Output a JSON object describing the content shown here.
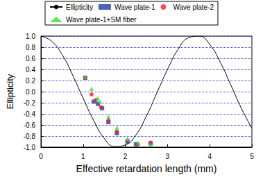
{
  "chart_data": {
    "type": "line",
    "xlabel": "Effective retardation length (mm)",
    "ylabel": "Ellipticity",
    "xlim": [
      0,
      5
    ],
    "xticks": [
      0,
      1,
      2,
      3,
      4,
      5
    ],
    "ylim": [
      -1,
      1
    ],
    "yticks": [
      {
        "value": -1,
        "label": "-1.0"
      },
      {
        "value": -0.8,
        "label": "-0.8"
      },
      {
        "value": -0.6,
        "label": "-0.6"
      },
      {
        "value": -0.4,
        "label": "-0.4"
      },
      {
        "value": -0.2,
        "label": "-0.2"
      },
      {
        "value": 0,
        "label": "0.0"
      },
      {
        "value": 0.2,
        "label": "0.2"
      },
      {
        "value": 0.4,
        "label": "0.4"
      },
      {
        "value": 0.6,
        "label": "0.6"
      },
      {
        "value": 0.8,
        "label": "0.8"
      },
      {
        "value": 1,
        "label": "1.0"
      }
    ],
    "grid": true,
    "legend": "top",
    "series": [
      {
        "name": "Ellipticity",
        "type": "line",
        "color": "#000000",
        "line_style": "solid",
        "x": [
          0,
          0.25,
          0.5,
          0.75,
          1.0,
          1.25,
          1.5,
          1.75,
          2.0,
          2.25,
          2.5,
          2.75,
          3.0,
          3.25,
          3.5,
          3.75,
          4.0,
          4.25,
          4.5,
          4.75,
          5.0
        ],
        "values": [
          1.0,
          0.91,
          0.67,
          0.3,
          -0.12,
          -0.52,
          -0.84,
          -0.99,
          -0.96,
          -0.78,
          -0.44,
          -0.02,
          0.4,
          0.76,
          0.97,
          1.0,
          0.85,
          0.53,
          0.12,
          -0.3,
          -0.66
        ]
      },
      {
        "name": "Wave plate-1",
        "type": "scatter",
        "color": "#1f3fa0",
        "marker": "square",
        "x": [
          1.05,
          1.25,
          1.35,
          1.45,
          1.6,
          1.8,
          2.05,
          2.25,
          2.6
        ],
        "values": [
          0.25,
          -0.18,
          -0.22,
          -0.3,
          -0.55,
          -0.75,
          -0.9,
          -0.95,
          -0.93
        ]
      },
      {
        "name": "Wave plate-2",
        "type": "scatter",
        "color": "#e8202a",
        "marker": "circle",
        "x": [
          1.05,
          1.2,
          1.3,
          1.42,
          1.6,
          1.8,
          2.05,
          2.3,
          2.6
        ],
        "values": [
          0.25,
          -0.05,
          -0.15,
          -0.28,
          -0.52,
          -0.72,
          -0.88,
          -0.95,
          -0.92
        ]
      },
      {
        "name": "Wave plate-1+SM fiber",
        "type": "scatter",
        "color": "#33dd33",
        "marker": "triangle",
        "x": [
          1.05,
          1.2,
          1.35,
          1.4,
          1.6,
          1.8,
          2.05,
          2.3,
          2.6
        ],
        "values": [
          0.27,
          0.05,
          -0.12,
          -0.18,
          -0.45,
          -0.65,
          -0.85,
          -0.92,
          -0.95
        ]
      }
    ]
  }
}
